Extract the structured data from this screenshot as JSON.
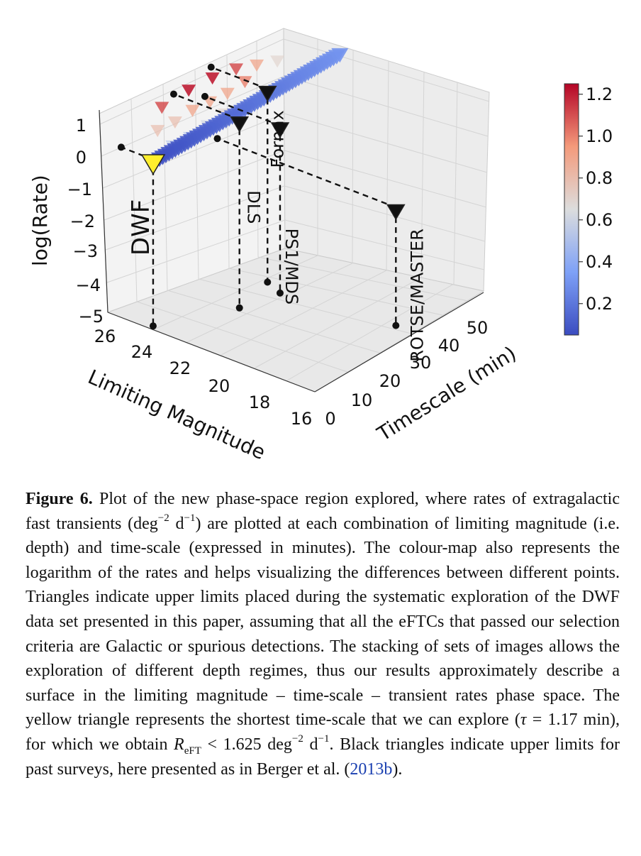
{
  "figure": {
    "caption": {
      "label": "Figure 6.",
      "part1": "Plot of the new phase-space region explored, where rates of extragalactic fast transients (deg",
      "exp_deg": "−2",
      "part2": " d",
      "exp_d": "−1",
      "part3": ") are plotted at each combination of limiting magnitude (i.e. depth) and time-scale (expressed in minutes). The colour-map also represents the logarithm of the rates and helps visualizing the differences between different points. Triangles indicate upper limits placed during the systematic exploration of the DWF data set presented in this paper, assuming that all the eFTCs that passed our selection criteria are Galactic or spurious detections. The stacking of sets of images allows the exploration of different depth regimes, thus our results approximately describe a surface in the limiting magnitude – time-scale – transient rates phase space. The yellow triangle represents the shortest time-scale that we can explore (",
      "tau_symbol": "τ",
      "tau_value": " = 1.17 min), for which we obtain ",
      "rate_symbol": "R",
      "rate_sub": "eFT",
      "rate_value": " < 1.625 deg",
      "rate_exp_deg": "−2",
      "rate_d": " d",
      "rate_exp_d": "−1",
      "part4": ". Black triangles indicate upper limits for past surveys, here presented as in Berger et al. (",
      "cite": "2013b",
      "part5": ")."
    }
  },
  "chart_data": {
    "type": "scatter3d",
    "zlabel": "log(Rate)",
    "xlabel": "Limiting Magnitude",
    "ylabel": "Timescale (min)",
    "x_ticks": [
      "26",
      "24",
      "22",
      "20",
      "18",
      "16"
    ],
    "y_ticks": [
      "0",
      "10",
      "20",
      "30",
      "40",
      "50"
    ],
    "z_ticks": [
      "1",
      "0",
      "−1",
      "−2",
      "−3",
      "−4",
      "−5"
    ],
    "xlim": [
      16,
      27
    ],
    "ylim": [
      0,
      55
    ],
    "zlim": [
      -5,
      1.5
    ],
    "colorbar": {
      "ticks": [
        "1.2",
        "1.0",
        "0.8",
        "0.6",
        "0.4",
        "0.2"
      ],
      "range": [
        0.05,
        1.25
      ],
      "colormap": "coolwarm"
    },
    "surveys": [
      {
        "name": "DWF",
        "mag": 24.8,
        "timescale": 1.17,
        "log_rate": 0.21,
        "color": "#ffef2e",
        "label_color": "#2547c9"
      },
      {
        "name": "DLS",
        "mag": 23.0,
        "timescale": 18,
        "log_rate": 0.9,
        "color": "#111111",
        "label_color": "#111111"
      },
      {
        "name": "PS1/MDS",
        "mag": 22.5,
        "timescale": 28,
        "log_rate": 0.25,
        "color": "#111111",
        "label_color": "#111111"
      },
      {
        "name": "Fornax",
        "mag": 23.5,
        "timescale": 30,
        "log_rate": 1.05,
        "color": "#111111",
        "label_color": "#111111"
      },
      {
        "name": "ROTSE/MASTER",
        "mag": 17.0,
        "timescale": 32,
        "log_rate": -1.3,
        "color": "#111111",
        "label_color": "#111111"
      }
    ],
    "dwf_points": [
      {
        "mag": 24.4,
        "timescale": 5,
        "log_rate": 0.5
      },
      {
        "mag": 24.3,
        "timescale": 10,
        "log_rate": 0.5
      },
      {
        "mag": 24.2,
        "timescale": 15,
        "log_rate": 0.6
      },
      {
        "mag": 24.1,
        "timescale": 20,
        "log_rate": 0.7
      },
      {
        "mag": 24.0,
        "timescale": 25,
        "log_rate": 0.6
      },
      {
        "mag": 23.9,
        "timescale": 30,
        "log_rate": 0.6
      },
      {
        "mag": 23.8,
        "timescale": 35,
        "log_rate": 0.7
      },
      {
        "mag": 25.2,
        "timescale": 5,
        "log_rate": 0.8
      },
      {
        "mag": 25.1,
        "timescale": 10,
        "log_rate": 0.8
      },
      {
        "mag": 25.0,
        "timescale": 15,
        "log_rate": 0.9
      },
      {
        "mag": 24.9,
        "timescale": 20,
        "log_rate": 0.9
      },
      {
        "mag": 24.8,
        "timescale": 25,
        "log_rate": 0.9
      },
      {
        "mag": 24.7,
        "timescale": 30,
        "log_rate": 1.0
      },
      {
        "mag": 25.8,
        "timescale": 10,
        "log_rate": 1.1
      },
      {
        "mag": 25.7,
        "timescale": 18,
        "log_rate": 1.2
      },
      {
        "mag": 25.6,
        "timescale": 25,
        "log_rate": 1.2
      },
      {
        "mag": 25.5,
        "timescale": 32,
        "log_rate": 1.1
      },
      {
        "mag": 25.4,
        "timescale": 38,
        "log_rate": 0.9
      },
      {
        "mag": 25.3,
        "timescale": 44,
        "log_rate": 0.7
      }
    ],
    "ribbon": {
      "mag_start": 24.8,
      "mag_end": 23.8,
      "timescale_start": 1.2,
      "timescale_end": 55,
      "log_rate_start": 0.1,
      "log_rate_end": 0.6
    }
  }
}
